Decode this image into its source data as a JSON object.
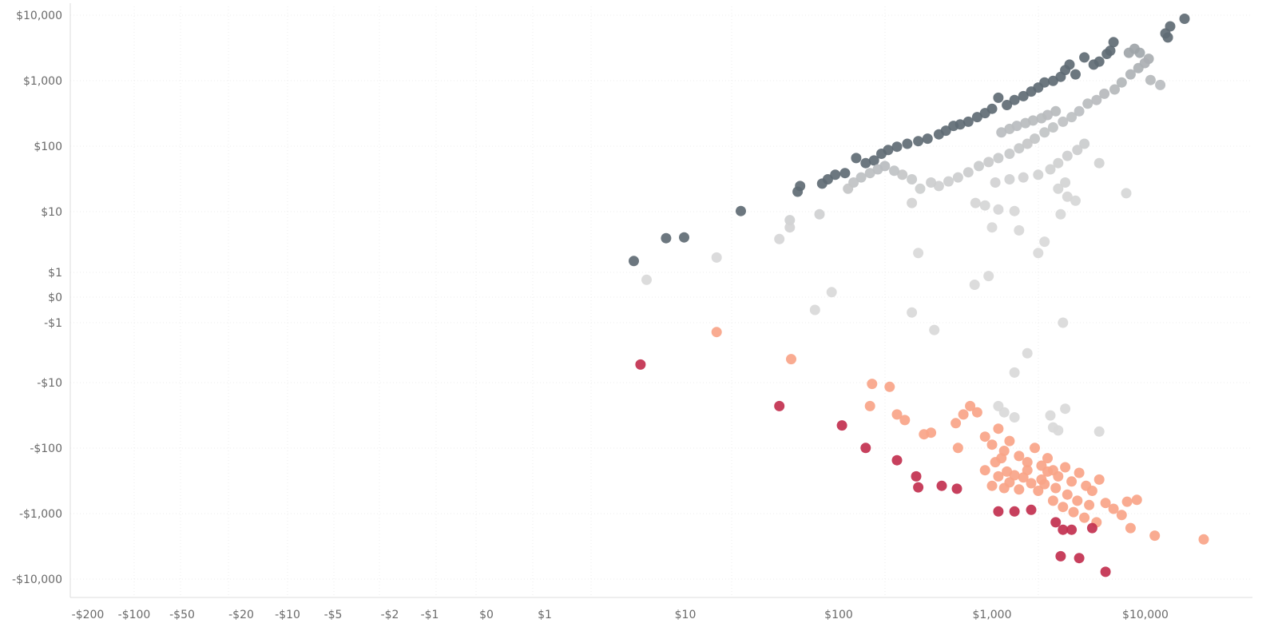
{
  "chart_data": {
    "type": "scatter",
    "title": "",
    "xlabel": "",
    "ylabel": "",
    "x_scale": "symlog",
    "y_scale": "symlog",
    "x_ticks": [
      "-$200",
      "-$100",
      "-$50",
      "-$20",
      "-$10",
      "-$5",
      "-$2",
      "-$1",
      "$0",
      "$1",
      "$10",
      "$100",
      "$1,000",
      "$10,000"
    ],
    "y_ticks": [
      "$10,000",
      "$1,000",
      "$100",
      "$10",
      "$1",
      "$0",
      "-$1",
      "-$10",
      "-$100",
      "-$1,000",
      "-$10,000"
    ],
    "grid": true,
    "color_scale": {
      "high": "#5f6b74",
      "mid": "#d9d9d9",
      "low_mid": "#f9a488",
      "low": "#c2304f"
    },
    "points": [
      {
        "x": 18000,
        "y": 8800,
        "c": "high"
      },
      {
        "x": 14500,
        "y": 6700,
        "c": "high"
      },
      {
        "x": 13500,
        "y": 5200,
        "c": "high"
      },
      {
        "x": 14000,
        "y": 4500,
        "c": "high"
      },
      {
        "x": 9200,
        "y": 2600,
        "c": "mid"
      },
      {
        "x": 8500,
        "y": 3000,
        "c": "mid"
      },
      {
        "x": 7800,
        "y": 2600,
        "c": "mid"
      },
      {
        "x": 6200,
        "y": 3800,
        "c": "high"
      },
      {
        "x": 5900,
        "y": 2800,
        "c": "high"
      },
      {
        "x": 5600,
        "y": 2500,
        "c": "high"
      },
      {
        "x": 5000,
        "y": 1900,
        "c": "high"
      },
      {
        "x": 4600,
        "y": 1700,
        "c": "high"
      },
      {
        "x": 4000,
        "y": 2200,
        "c": "high"
      },
      {
        "x": 3500,
        "y": 1200,
        "c": "high"
      },
      {
        "x": 3200,
        "y": 1700,
        "c": "high"
      },
      {
        "x": 3000,
        "y": 1400,
        "c": "high"
      },
      {
        "x": 2800,
        "y": 1100,
        "c": "high"
      },
      {
        "x": 2500,
        "y": 950,
        "c": "high"
      },
      {
        "x": 2200,
        "y": 900,
        "c": "high"
      },
      {
        "x": 2000,
        "y": 750,
        "c": "high"
      },
      {
        "x": 1800,
        "y": 650,
        "c": "high"
      },
      {
        "x": 1600,
        "y": 550,
        "c": "high"
      },
      {
        "x": 1400,
        "y": 480,
        "c": "high"
      },
      {
        "x": 1250,
        "y": 400,
        "c": "high"
      },
      {
        "x": 1100,
        "y": 520,
        "c": "high"
      },
      {
        "x": 1000,
        "y": 350,
        "c": "high"
      },
      {
        "x": 900,
        "y": 300,
        "c": "high"
      },
      {
        "x": 800,
        "y": 260,
        "c": "high"
      },
      {
        "x": 700,
        "y": 220,
        "c": "high"
      },
      {
        "x": 620,
        "y": 200,
        "c": "high"
      },
      {
        "x": 560,
        "y": 190,
        "c": "high"
      },
      {
        "x": 500,
        "y": 160,
        "c": "high"
      },
      {
        "x": 450,
        "y": 140,
        "c": "high"
      },
      {
        "x": 380,
        "y": 120,
        "c": "high"
      },
      {
        "x": 330,
        "y": 110,
        "c": "high"
      },
      {
        "x": 280,
        "y": 100,
        "c": "high"
      },
      {
        "x": 240,
        "y": 90,
        "c": "high"
      },
      {
        "x": 210,
        "y": 80,
        "c": "high"
      },
      {
        "x": 190,
        "y": 70,
        "c": "high"
      },
      {
        "x": 170,
        "y": 55,
        "c": "high"
      },
      {
        "x": 150,
        "y": 50,
        "c": "high"
      },
      {
        "x": 130,
        "y": 60,
        "c": "high"
      },
      {
        "x": 110,
        "y": 35,
        "c": "high"
      },
      {
        "x": 95,
        "y": 33,
        "c": "high"
      },
      {
        "x": 85,
        "y": 28,
        "c": "high"
      },
      {
        "x": 78,
        "y": 24,
        "c": "high"
      },
      {
        "x": 56,
        "y": 22,
        "c": "high"
      },
      {
        "x": 54,
        "y": 18,
        "c": "high"
      },
      {
        "x": 23,
        "y": 9,
        "c": "high"
      },
      {
        "x": 9.8,
        "y": 3.5,
        "c": "high"
      },
      {
        "x": 7.3,
        "y": 3.4,
        "c": "high"
      },
      {
        "x": 4.3,
        "y": 1.5,
        "c": "high"
      },
      {
        "x": 10500,
        "y": 2100,
        "c": "mid"
      },
      {
        "x": 9900,
        "y": 1800,
        "c": "mid"
      },
      {
        "x": 9000,
        "y": 1500,
        "c": "mid"
      },
      {
        "x": 10800,
        "y": 980,
        "c": "mid"
      },
      {
        "x": 12500,
        "y": 820,
        "c": "mid"
      },
      {
        "x": 8000,
        "y": 1200,
        "c": "mid"
      },
      {
        "x": 7000,
        "y": 900,
        "c": "mid"
      },
      {
        "x": 6300,
        "y": 700,
        "c": "mid"
      },
      {
        "x": 5400,
        "y": 600,
        "c": "mid"
      },
      {
        "x": 4800,
        "y": 480,
        "c": "mid"
      },
      {
        "x": 4200,
        "y": 420,
        "c": "mid"
      },
      {
        "x": 3700,
        "y": 320,
        "c": "mid"
      },
      {
        "x": 3300,
        "y": 260,
        "c": "mid"
      },
      {
        "x": 2900,
        "y": 220,
        "c": "mid"
      },
      {
        "x": 2500,
        "y": 180,
        "c": "mid"
      },
      {
        "x": 2200,
        "y": 150,
        "c": "mid"
      },
      {
        "x": 1900,
        "y": 120,
        "c": "mid"
      },
      {
        "x": 1700,
        "y": 100,
        "c": "mid"
      },
      {
        "x": 1500,
        "y": 85,
        "c": "mid"
      },
      {
        "x": 1300,
        "y": 70,
        "c": "mid"
      },
      {
        "x": 1100,
        "y": 60,
        "c": "mid"
      },
      {
        "x": 950,
        "y": 52,
        "c": "mid"
      },
      {
        "x": 820,
        "y": 45,
        "c": "mid"
      },
      {
        "x": 700,
        "y": 36,
        "c": "mid"
      },
      {
        "x": 600,
        "y": 30,
        "c": "mid"
      },
      {
        "x": 520,
        "y": 26,
        "c": "mid"
      },
      {
        "x": 450,
        "y": 22,
        "c": "mid"
      },
      {
        "x": 400,
        "y": 25,
        "c": "mid"
      },
      {
        "x": 340,
        "y": 20,
        "c": "mid"
      },
      {
        "x": 300,
        "y": 28,
        "c": "mid"
      },
      {
        "x": 260,
        "y": 33,
        "c": "mid"
      },
      {
        "x": 230,
        "y": 38,
        "c": "mid"
      },
      {
        "x": 200,
        "y": 45,
        "c": "mid"
      },
      {
        "x": 180,
        "y": 40,
        "c": "mid"
      },
      {
        "x": 160,
        "y": 35,
        "c": "mid"
      },
      {
        "x": 140,
        "y": 30,
        "c": "mid"
      },
      {
        "x": 125,
        "y": 25,
        "c": "mid"
      },
      {
        "x": 115,
        "y": 20,
        "c": "mid"
      },
      {
        "x": 2600,
        "y": 320,
        "c": "mid"
      },
      {
        "x": 2300,
        "y": 280,
        "c": "mid"
      },
      {
        "x": 2100,
        "y": 250,
        "c": "mid"
      },
      {
        "x": 1850,
        "y": 230,
        "c": "mid"
      },
      {
        "x": 1650,
        "y": 210,
        "c": "mid"
      },
      {
        "x": 1450,
        "y": 190,
        "c": "mid"
      },
      {
        "x": 1300,
        "y": 170,
        "c": "mid"
      },
      {
        "x": 1150,
        "y": 150,
        "c": "mid"
      },
      {
        "x": 4000,
        "y": 100,
        "c": "mid"
      },
      {
        "x": 3600,
        "y": 80,
        "c": "mid"
      },
      {
        "x": 3100,
        "y": 65,
        "c": "mid"
      },
      {
        "x": 2700,
        "y": 50,
        "c": "mid"
      },
      {
        "x": 2400,
        "y": 40,
        "c": "mid"
      },
      {
        "x": 5000,
        "y": 50,
        "c": "mid"
      },
      {
        "x": 2000,
        "y": 33,
        "c": "mid"
      },
      {
        "x": 1600,
        "y": 30,
        "c": "mid"
      },
      {
        "x": 1300,
        "y": 28,
        "c": "mid"
      },
      {
        "x": 1050,
        "y": 25,
        "c": "mid"
      },
      {
        "x": 3000,
        "y": 25,
        "c": "mid"
      },
      {
        "x": 2700,
        "y": 20,
        "c": "mid"
      },
      {
        "x": 3100,
        "y": 15,
        "c": "mid"
      },
      {
        "x": 7500,
        "y": 17,
        "c": "mid"
      },
      {
        "x": 780,
        "y": 12,
        "c": "mid"
      },
      {
        "x": 900,
        "y": 11,
        "c": "mid"
      },
      {
        "x": 300,
        "y": 12,
        "c": "mid"
      },
      {
        "x": 1100,
        "y": 9.5,
        "c": "mid"
      },
      {
        "x": 1400,
        "y": 9,
        "c": "mid"
      },
      {
        "x": 2800,
        "y": 8,
        "c": "mid"
      },
      {
        "x": 3500,
        "y": 13,
        "c": "mid"
      },
      {
        "x": 75,
        "y": 8,
        "c": "mid"
      },
      {
        "x": 48,
        "y": 6.5,
        "c": "mid"
      },
      {
        "x": 48,
        "y": 5,
        "c": "mid"
      },
      {
        "x": 41,
        "y": 3.3,
        "c": "mid"
      },
      {
        "x": 1000,
        "y": 5,
        "c": "mid"
      },
      {
        "x": 1500,
        "y": 4.5,
        "c": "mid"
      },
      {
        "x": 2200,
        "y": 3,
        "c": "mid"
      },
      {
        "x": 2000,
        "y": 2,
        "c": "mid"
      },
      {
        "x": 330,
        "y": 2,
        "c": "mid"
      },
      {
        "x": 16,
        "y": 1.7,
        "c": "mid"
      },
      {
        "x": 5.3,
        "y": 0.7,
        "c": "mid"
      },
      {
        "x": 950,
        "y": 0.85,
        "c": "mid"
      },
      {
        "x": 770,
        "y": 0.5,
        "c": "mid"
      },
      {
        "x": 90,
        "y": 0.2,
        "c": "mid"
      },
      {
        "x": 70,
        "y": -0.5,
        "c": "mid"
      },
      {
        "x": 300,
        "y": -0.6,
        "c": "mid"
      },
      {
        "x": 420,
        "y": -1.3,
        "c": "mid"
      },
      {
        "x": 2900,
        "y": -1.0,
        "c": "mid"
      },
      {
        "x": 1700,
        "y": -3,
        "c": "mid"
      },
      {
        "x": 1400,
        "y": -6,
        "c": "mid"
      },
      {
        "x": 16,
        "y": -1.4,
        "c": "low_mid"
      },
      {
        "x": 49,
        "y": -3.7,
        "c": "low_mid"
      },
      {
        "x": 165,
        "y": -9,
        "c": "low_mid"
      },
      {
        "x": 215,
        "y": -10,
        "c": "low_mid"
      },
      {
        "x": 160,
        "y": -20,
        "c": "low_mid"
      },
      {
        "x": 240,
        "y": -27,
        "c": "low_mid"
      },
      {
        "x": 270,
        "y": -33,
        "c": "low_mid"
      },
      {
        "x": 360,
        "y": -55,
        "c": "low_mid"
      },
      {
        "x": 400,
        "y": -52,
        "c": "low_mid"
      },
      {
        "x": 580,
        "y": -37,
        "c": "low_mid"
      },
      {
        "x": 600,
        "y": -90,
        "c": "low_mid"
      },
      {
        "x": 650,
        "y": -27,
        "c": "low_mid"
      },
      {
        "x": 720,
        "y": -20,
        "c": "low_mid"
      },
      {
        "x": 800,
        "y": -25,
        "c": "low_mid"
      },
      {
        "x": 900,
        "y": -60,
        "c": "low_mid"
      },
      {
        "x": 1000,
        "y": -80,
        "c": "low_mid"
      },
      {
        "x": 1100,
        "y": -45,
        "c": "low_mid"
      },
      {
        "x": 1200,
        "y": -100,
        "c": "low_mid"
      },
      {
        "x": 1300,
        "y": -70,
        "c": "low_mid"
      },
      {
        "x": 1500,
        "y": -120,
        "c": "low_mid"
      },
      {
        "x": 1700,
        "y": -150,
        "c": "low_mid"
      },
      {
        "x": 1900,
        "y": -90,
        "c": "low_mid"
      },
      {
        "x": 2100,
        "y": -170,
        "c": "low_mid"
      },
      {
        "x": 2300,
        "y": -130,
        "c": "low_mid"
      },
      {
        "x": 2500,
        "y": -200,
        "c": "low_mid"
      },
      {
        "x": 2700,
        "y": -250,
        "c": "low_mid"
      },
      {
        "x": 3000,
        "y": -180,
        "c": "low_mid"
      },
      {
        "x": 3300,
        "y": -300,
        "c": "low_mid"
      },
      {
        "x": 3700,
        "y": -220,
        "c": "low_mid"
      },
      {
        "x": 4100,
        "y": -350,
        "c": "low_mid"
      },
      {
        "x": 4500,
        "y": -420,
        "c": "low_mid"
      },
      {
        "x": 5000,
        "y": -280,
        "c": "low_mid"
      },
      {
        "x": 5500,
        "y": -650,
        "c": "low_mid"
      },
      {
        "x": 6200,
        "y": -800,
        "c": "low_mid"
      },
      {
        "x": 7000,
        "y": -1000,
        "c": "low_mid"
      },
      {
        "x": 7600,
        "y": -620,
        "c": "low_mid"
      },
      {
        "x": 8800,
        "y": -580,
        "c": "low_mid"
      },
      {
        "x": 8000,
        "y": -1600,
        "c": "low_mid"
      },
      {
        "x": 11500,
        "y": -2100,
        "c": "low_mid"
      },
      {
        "x": 24000,
        "y": -2400,
        "c": "low_mid"
      },
      {
        "x": 3100,
        "y": -480,
        "c": "low_mid"
      },
      {
        "x": 2600,
        "y": -380,
        "c": "low_mid"
      },
      {
        "x": 2200,
        "y": -330,
        "c": "low_mid"
      },
      {
        "x": 1800,
        "y": -320,
        "c": "low_mid"
      },
      {
        "x": 1600,
        "y": -260,
        "c": "low_mid"
      },
      {
        "x": 1400,
        "y": -240,
        "c": "low_mid"
      },
      {
        "x": 1250,
        "y": -210,
        "c": "low_mid"
      },
      {
        "x": 900,
        "y": -200,
        "c": "low_mid"
      },
      {
        "x": 1050,
        "y": -150,
        "c": "low_mid"
      },
      {
        "x": 1150,
        "y": -130,
        "c": "low_mid"
      },
      {
        "x": 1000,
        "y": -350,
        "c": "low_mid"
      },
      {
        "x": 1200,
        "y": -380,
        "c": "low_mid"
      },
      {
        "x": 1500,
        "y": -400,
        "c": "low_mid"
      },
      {
        "x": 2000,
        "y": -420,
        "c": "low_mid"
      },
      {
        "x": 2500,
        "y": -600,
        "c": "low_mid"
      },
      {
        "x": 2900,
        "y": -750,
        "c": "low_mid"
      },
      {
        "x": 3400,
        "y": -900,
        "c": "low_mid"
      },
      {
        "x": 4000,
        "y": -1100,
        "c": "low_mid"
      },
      {
        "x": 4800,
        "y": -1300,
        "c": "low_mid"
      },
      {
        "x": 1100,
        "y": -250,
        "c": "low_mid"
      },
      {
        "x": 1300,
        "y": -310,
        "c": "low_mid"
      },
      {
        "x": 1700,
        "y": -200,
        "c": "low_mid"
      },
      {
        "x": 2100,
        "y": -280,
        "c": "low_mid"
      },
      {
        "x": 2300,
        "y": -210,
        "c": "low_mid"
      },
      {
        "x": 3600,
        "y": -600,
        "c": "low_mid"
      },
      {
        "x": 4300,
        "y": -700,
        "c": "low_mid"
      },
      {
        "x": 1200,
        "y": -25,
        "c": "mid"
      },
      {
        "x": 1100,
        "y": -20,
        "c": "mid"
      },
      {
        "x": 1400,
        "y": -30,
        "c": "mid"
      },
      {
        "x": 2400,
        "y": -28,
        "c": "mid"
      },
      {
        "x": 2700,
        "y": -48,
        "c": "mid"
      },
      {
        "x": 3000,
        "y": -22,
        "c": "mid"
      },
      {
        "x": 5000,
        "y": -50,
        "c": "mid"
      },
      {
        "x": 2500,
        "y": -43,
        "c": "mid"
      },
      {
        "x": 4.8,
        "y": -4.5,
        "c": "low"
      },
      {
        "x": 41,
        "y": -20,
        "c": "low"
      },
      {
        "x": 105,
        "y": -40,
        "c": "low"
      },
      {
        "x": 150,
        "y": -90,
        "c": "low"
      },
      {
        "x": 240,
        "y": -140,
        "c": "low"
      },
      {
        "x": 320,
        "y": -250,
        "c": "low"
      },
      {
        "x": 330,
        "y": -370,
        "c": "low"
      },
      {
        "x": 470,
        "y": -350,
        "c": "low"
      },
      {
        "x": 590,
        "y": -390,
        "c": "low"
      },
      {
        "x": 1100,
        "y": -880,
        "c": "low"
      },
      {
        "x": 1400,
        "y": -880,
        "c": "low"
      },
      {
        "x": 1800,
        "y": -830,
        "c": "low"
      },
      {
        "x": 2600,
        "y": -1300,
        "c": "low"
      },
      {
        "x": 2900,
        "y": -1700,
        "c": "low"
      },
      {
        "x": 3300,
        "y": -1700,
        "c": "low"
      },
      {
        "x": 4500,
        "y": -1600,
        "c": "low"
      },
      {
        "x": 2800,
        "y": -4400,
        "c": "low"
      },
      {
        "x": 3700,
        "y": -4700,
        "c": "low"
      },
      {
        "x": 5500,
        "y": -7700,
        "c": "low"
      }
    ]
  }
}
